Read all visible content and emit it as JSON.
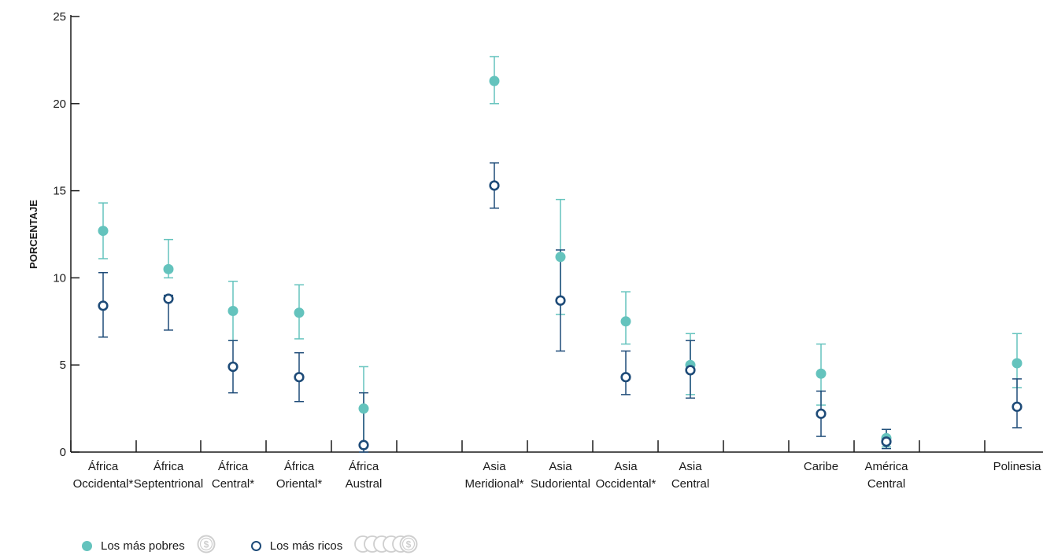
{
  "chart_data": {
    "type": "scatter",
    "ylabel": "PORCENTAJE",
    "ylim": [
      0,
      25
    ],
    "yticks": [
      "0",
      "5",
      "10",
      "15",
      "20",
      "25"
    ],
    "colors": {
      "poorest": "#64c3bd",
      "richest": "#1e4b78",
      "axis": "#1a1a1a"
    },
    "categories": [
      [
        "África",
        "Occidental*"
      ],
      [
        "África",
        "Septentrional"
      ],
      [
        "África",
        "Central*"
      ],
      [
        "África",
        "Oriental*"
      ],
      [
        "África",
        "Austral"
      ],
      [
        "Asia",
        "Meridional*"
      ],
      [
        "Asia",
        "Sudoriental"
      ],
      [
        "Asia",
        "Occidental*"
      ],
      [
        "Asia",
        "Central"
      ],
      [
        "Caribe"
      ],
      [
        "América",
        "Central"
      ],
      [
        "Polinesia"
      ]
    ],
    "series": [
      {
        "name": "Los más pobres",
        "icon": "single-coin-icon",
        "values": [
          12.7,
          10.5,
          8.1,
          8.0,
          2.5,
          21.3,
          11.2,
          7.5,
          5.0,
          4.5,
          0.8,
          5.1
        ],
        "err_low": [
          11.1,
          10.0,
          6.4,
          6.5,
          0.4,
          20.0,
          7.9,
          6.2,
          3.3,
          2.7,
          0.3,
          3.7
        ],
        "err_high": [
          14.3,
          12.2,
          9.8,
          9.6,
          4.9,
          22.7,
          14.5,
          9.2,
          6.8,
          6.2,
          1.3,
          6.8
        ]
      },
      {
        "name": "Los más ricos",
        "icon": "coin-stack-icon",
        "values": [
          8.4,
          8.8,
          4.9,
          4.3,
          0.4,
          15.3,
          8.7,
          4.3,
          4.7,
          2.2,
          0.6,
          2.6
        ],
        "err_low": [
          6.6,
          7.0,
          3.4,
          2.9,
          0.0,
          14.0,
          5.8,
          3.3,
          3.1,
          0.9,
          0.2,
          1.4
        ],
        "err_high": [
          10.3,
          9.0,
          6.4,
          5.7,
          3.4,
          16.6,
          11.6,
          5.8,
          6.4,
          3.5,
          1.3,
          4.2
        ]
      }
    ]
  },
  "legend": {
    "poorest_label": "Los más pobres",
    "richest_label": "Los más ricos"
  }
}
